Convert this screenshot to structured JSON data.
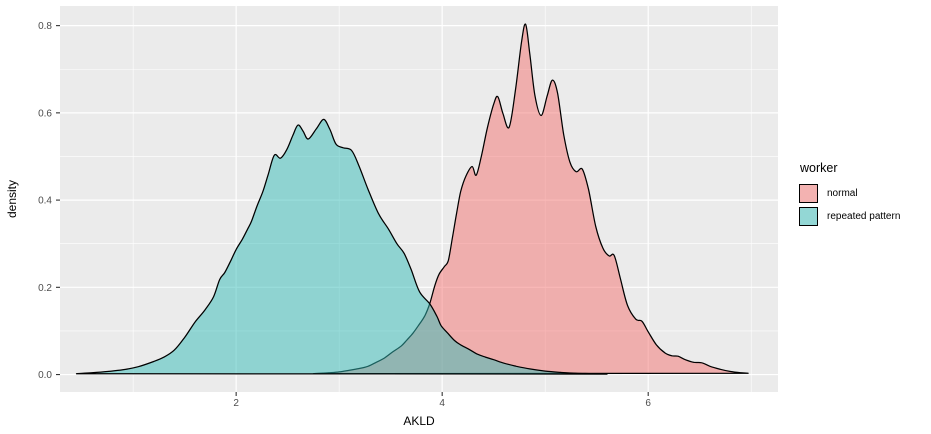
{
  "figure": {
    "bg": "#FFFFFF",
    "panel_bg": "#EBEBEB",
    "grid_color": "#FFFFFF",
    "tick_color": "#333333",
    "tick_label_color": "#4D4D4D"
  },
  "axes": {
    "x": {
      "label": "AKLD",
      "tick_labels": [
        "2",
        "4",
        "6"
      ],
      "tick_values": [
        2,
        4,
        6
      ],
      "minor_values": [
        1,
        3,
        5,
        7
      ],
      "range": [
        0.29,
        7.26
      ]
    },
    "y": {
      "label": "density",
      "tick_labels": [
        "0.0",
        "0.2",
        "0.4",
        "0.6",
        "0.8"
      ],
      "tick_values": [
        0,
        0.2,
        0.4,
        0.6,
        0.8
      ],
      "minor_values": [
        0.1,
        0.3,
        0.5,
        0.7
      ],
      "range": [
        -0.04,
        0.845
      ]
    }
  },
  "legend": {
    "title": "worker",
    "key_bg": "#F2F2F2",
    "key_border": "#000000",
    "items": [
      {
        "label": "normal",
        "fill": "#F3716F"
      },
      {
        "label": "repeated pattern",
        "fill": "#33BBB7"
      }
    ]
  },
  "chart_data": {
    "type": "area",
    "subtype": "kernel-density",
    "title": "",
    "xlabel": "AKLD",
    "ylabel": "density",
    "legend_title": "worker",
    "legend_position": "right",
    "grid": true,
    "xlim": [
      0.29,
      7.26
    ],
    "ylim": [
      -0.04,
      0.845
    ],
    "x_ticks": [
      2,
      4,
      6
    ],
    "y_ticks": [
      0,
      0.2,
      0.4,
      0.6,
      0.8
    ],
    "series": [
      {
        "name": "normal",
        "fill": "#F3716F",
        "fill_alpha": 0.5,
        "stroke": "#000000",
        "points": [
          [
            2.75,
            0.002
          ],
          [
            2.9,
            0.004
          ],
          [
            3.0,
            0.006
          ],
          [
            3.1,
            0.01
          ],
          [
            3.2,
            0.014
          ],
          [
            3.28,
            0.019
          ],
          [
            3.36,
            0.028
          ],
          [
            3.44,
            0.038
          ],
          [
            3.52,
            0.052
          ],
          [
            3.6,
            0.065
          ],
          [
            3.66,
            0.08
          ],
          [
            3.72,
            0.096
          ],
          [
            3.78,
            0.116
          ],
          [
            3.83,
            0.134
          ],
          [
            3.88,
            0.163
          ],
          [
            3.93,
            0.205
          ],
          [
            3.97,
            0.23
          ],
          [
            4.02,
            0.247
          ],
          [
            4.06,
            0.262
          ],
          [
            4.1,
            0.315
          ],
          [
            4.14,
            0.37
          ],
          [
            4.18,
            0.42
          ],
          [
            4.23,
            0.455
          ],
          [
            4.29,
            0.477
          ],
          [
            4.33,
            0.457
          ],
          [
            4.38,
            0.5
          ],
          [
            4.44,
            0.567
          ],
          [
            4.5,
            0.62
          ],
          [
            4.54,
            0.637
          ],
          [
            4.59,
            0.598
          ],
          [
            4.65,
            0.567
          ],
          [
            4.71,
            0.65
          ],
          [
            4.77,
            0.762
          ],
          [
            4.81,
            0.803
          ],
          [
            4.85,
            0.737
          ],
          [
            4.9,
            0.64
          ],
          [
            4.96,
            0.594
          ],
          [
            5.02,
            0.64
          ],
          [
            5.07,
            0.675
          ],
          [
            5.12,
            0.645
          ],
          [
            5.18,
            0.55
          ],
          [
            5.24,
            0.487
          ],
          [
            5.3,
            0.465
          ],
          [
            5.36,
            0.471
          ],
          [
            5.42,
            0.425
          ],
          [
            5.49,
            0.34
          ],
          [
            5.56,
            0.29
          ],
          [
            5.62,
            0.272
          ],
          [
            5.67,
            0.273
          ],
          [
            5.73,
            0.22
          ],
          [
            5.8,
            0.158
          ],
          [
            5.88,
            0.127
          ],
          [
            5.94,
            0.122
          ],
          [
            6.0,
            0.098
          ],
          [
            6.08,
            0.068
          ],
          [
            6.16,
            0.05
          ],
          [
            6.23,
            0.043
          ],
          [
            6.29,
            0.042
          ],
          [
            6.36,
            0.034
          ],
          [
            6.44,
            0.028
          ],
          [
            6.52,
            0.027
          ],
          [
            6.6,
            0.019
          ],
          [
            6.7,
            0.012
          ],
          [
            6.8,
            0.007
          ],
          [
            6.9,
            0.004
          ],
          [
            6.97,
            0.003
          ]
        ]
      },
      {
        "name": "repeated pattern",
        "fill": "#33BBB7",
        "fill_alpha": 0.5,
        "stroke": "#000000",
        "points": [
          [
            0.45,
            0.002
          ],
          [
            0.6,
            0.004
          ],
          [
            0.75,
            0.007
          ],
          [
            0.9,
            0.011
          ],
          [
            1.05,
            0.018
          ],
          [
            1.2,
            0.03
          ],
          [
            1.3,
            0.04
          ],
          [
            1.4,
            0.056
          ],
          [
            1.5,
            0.085
          ],
          [
            1.6,
            0.12
          ],
          [
            1.7,
            0.149
          ],
          [
            1.78,
            0.178
          ],
          [
            1.84,
            0.218
          ],
          [
            1.89,
            0.234
          ],
          [
            1.95,
            0.262
          ],
          [
            2.0,
            0.287
          ],
          [
            2.06,
            0.31
          ],
          [
            2.11,
            0.333
          ],
          [
            2.15,
            0.352
          ],
          [
            2.2,
            0.385
          ],
          [
            2.26,
            0.42
          ],
          [
            2.31,
            0.458
          ],
          [
            2.37,
            0.503
          ],
          [
            2.43,
            0.496
          ],
          [
            2.49,
            0.515
          ],
          [
            2.55,
            0.548
          ],
          [
            2.6,
            0.572
          ],
          [
            2.65,
            0.558
          ],
          [
            2.7,
            0.54
          ],
          [
            2.78,
            0.564
          ],
          [
            2.85,
            0.585
          ],
          [
            2.91,
            0.562
          ],
          [
            2.97,
            0.528
          ],
          [
            3.04,
            0.52
          ],
          [
            3.12,
            0.514
          ],
          [
            3.19,
            0.48
          ],
          [
            3.28,
            0.425
          ],
          [
            3.38,
            0.37
          ],
          [
            3.48,
            0.333
          ],
          [
            3.56,
            0.3
          ],
          [
            3.63,
            0.278
          ],
          [
            3.7,
            0.24
          ],
          [
            3.78,
            0.19
          ],
          [
            3.88,
            0.162
          ],
          [
            3.95,
            0.133
          ],
          [
            3.99,
            0.112
          ],
          [
            4.05,
            0.096
          ],
          [
            4.12,
            0.078
          ],
          [
            4.18,
            0.068
          ],
          [
            4.26,
            0.058
          ],
          [
            4.34,
            0.047
          ],
          [
            4.42,
            0.04
          ],
          [
            4.5,
            0.034
          ],
          [
            4.6,
            0.026
          ],
          [
            4.72,
            0.019
          ],
          [
            4.85,
            0.013
          ],
          [
            5.0,
            0.008
          ],
          [
            5.15,
            0.005
          ],
          [
            5.3,
            0.003
          ],
          [
            5.45,
            0.002
          ],
          [
            5.6,
            0.001
          ]
        ]
      }
    ]
  }
}
